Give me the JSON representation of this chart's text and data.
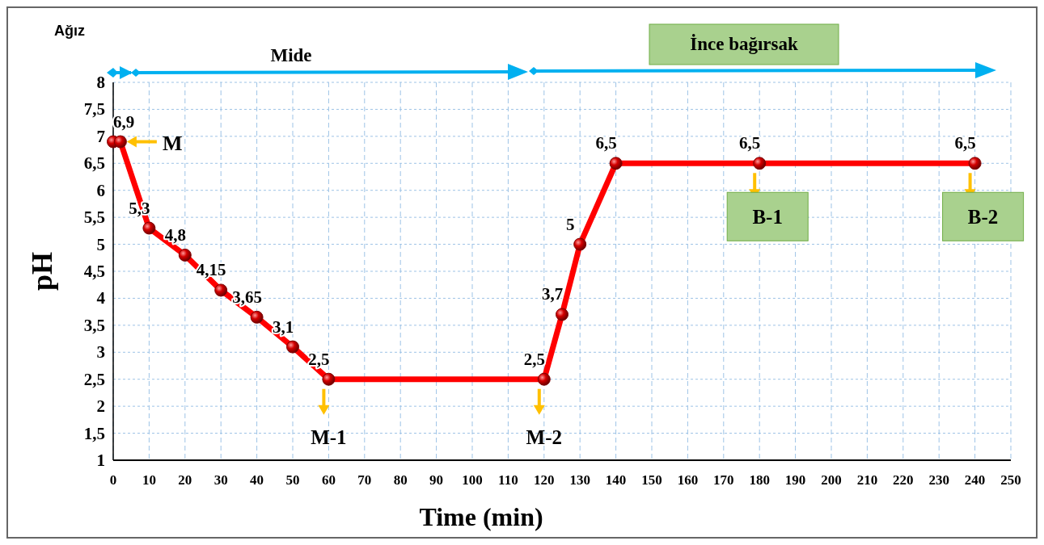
{
  "chart_data": {
    "type": "line",
    "xlabel": "Time (min)",
    "ylabel": "pH",
    "x": [
      0,
      2,
      10,
      20,
      30,
      40,
      50,
      60,
      120,
      125,
      130,
      140,
      180,
      240
    ],
    "series": [
      {
        "color": "#ff0000",
        "values": [
          6.9,
          6.9,
          5.3,
          4.8,
          4.15,
          3.65,
          3.1,
          2.5,
          2.5,
          3.7,
          5,
          6.5,
          6.5,
          6.5
        ],
        "value_labels": [
          "6,9",
          null,
          "5,3",
          "4,8",
          "4,15",
          "3,65",
          "3,1",
          "2,5",
          "2,5",
          "3,7",
          "5",
          "6,5",
          "6,5",
          "6,5"
        ]
      }
    ],
    "xlim": [
      0,
      250
    ],
    "xticks": [
      0,
      10,
      20,
      30,
      40,
      50,
      60,
      70,
      80,
      90,
      100,
      110,
      120,
      130,
      140,
      150,
      160,
      170,
      180,
      190,
      200,
      210,
      220,
      230,
      240,
      250
    ],
    "ylim": [
      1,
      8
    ],
    "yticks": [
      1,
      {
        "value": 1.5,
        "label": "1,5"
      },
      2,
      {
        "value": 2.5,
        "label": "2,5"
      },
      3,
      {
        "value": 3.5,
        "label": "3,5"
      },
      4,
      {
        "value": 4.5,
        "label": "4,5"
      },
      5,
      {
        "value": 5.5,
        "label": "5,5"
      },
      6,
      {
        "value": 6.5,
        "label": "6,5"
      },
      7,
      {
        "value": 7.5,
        "label": "7,5"
      },
      8
    ],
    "grid": true,
    "marker": "circle",
    "line_style": "solid",
    "annotations": [
      {
        "text": "M",
        "x": 2,
        "y": 6.9
      },
      {
        "text": "M-1",
        "x": 60,
        "y": 2.5
      },
      {
        "text": "M-2",
        "x": 120,
        "y": 2.5
      },
      {
        "text": "B-1",
        "x": 180,
        "y": 6.5
      },
      {
        "text": "B-2",
        "x": 240,
        "y": 6.5
      },
      "Ağız",
      "Mide",
      "İnce bağırsak"
    ]
  }
}
